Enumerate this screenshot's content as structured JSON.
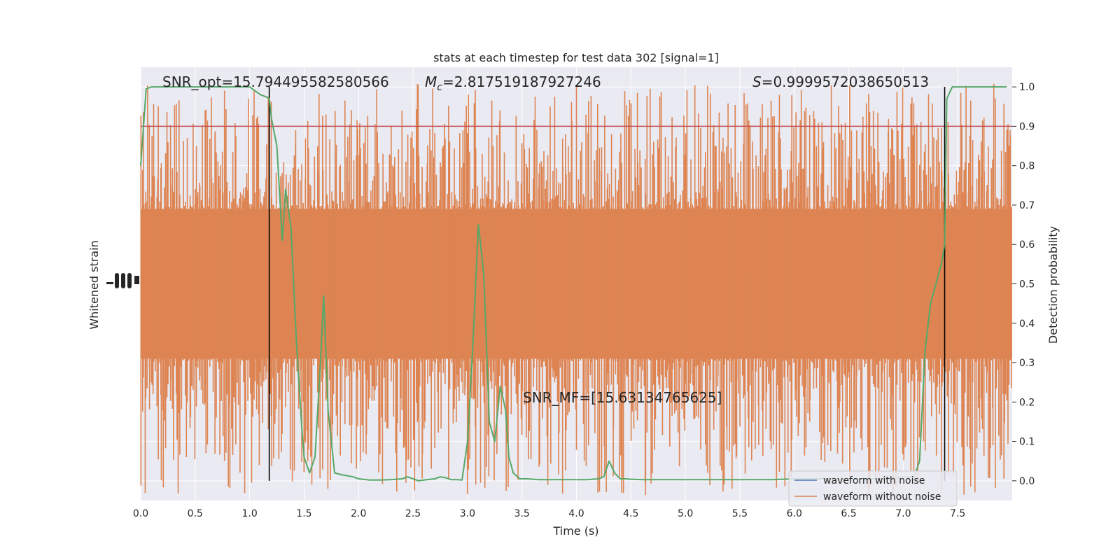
{
  "chart_data": {
    "type": "line",
    "title": "stats at each timestep for test data 302 [signal=1]",
    "xlabel": "Time (s)",
    "ylabel_left": "Whitened strain",
    "ylabel_right": "Detection probability",
    "xlim": [
      0,
      8
    ],
    "ylim_right": [
      -0.05,
      1.05
    ],
    "x_ticks": [
      "0.0",
      "0.5",
      "1.0",
      "1.5",
      "2.0",
      "2.5",
      "3.0",
      "3.5",
      "4.0",
      "4.5",
      "5.0",
      "5.5",
      "6.0",
      "6.5",
      "7.0",
      "7.5"
    ],
    "right_ticks": [
      "0.0",
      "0.1",
      "0.2",
      "0.3",
      "0.4",
      "0.5",
      "0.6",
      "0.7",
      "0.8",
      "0.9",
      "1.0"
    ],
    "grid": true,
    "legend_placement": "lower-right",
    "annotations": {
      "snr_opt": "SNR_opt=15.794495582580566",
      "mc_symbol": "M",
      "mc_sub": "c",
      "mc_value": "=2.817519187927246",
      "s_symbol": "S",
      "s_value": "=0.9999572038650513",
      "snr_mf": "SNR_MF=[15.63134765625]"
    },
    "threshold": 0.9,
    "vertical_markers": [
      1.18,
      7.38
    ],
    "series": [
      {
        "name": "waveform with noise",
        "color": "#4c72b0"
      },
      {
        "name": "waveform without noise",
        "color": "#dd8452"
      }
    ],
    "probability_color": "#55a868",
    "threshold_color": "#c44e52",
    "probability": {
      "x": [
        0.0,
        0.05,
        0.1,
        0.15,
        0.2,
        0.3,
        0.4,
        0.5,
        0.6,
        0.7,
        0.8,
        0.9,
        1.0,
        1.05,
        1.1,
        1.15,
        1.18,
        1.2,
        1.25,
        1.3,
        1.33,
        1.38,
        1.43,
        1.48,
        1.5,
        1.55,
        1.6,
        1.65,
        1.68,
        1.72,
        1.78,
        1.85,
        1.95,
        2.0,
        2.1,
        2.2,
        2.3,
        2.4,
        2.45,
        2.5,
        2.55,
        2.6,
        2.7,
        2.75,
        2.8,
        2.85,
        2.9,
        2.95,
        3.0,
        3.05,
        3.1,
        3.12,
        3.15,
        3.2,
        3.25,
        3.3,
        3.35,
        3.38,
        3.42,
        3.48,
        3.55,
        3.65,
        3.75,
        3.9,
        4.0,
        4.1,
        4.2,
        4.25,
        4.3,
        4.35,
        4.4,
        4.45,
        4.5,
        4.6,
        4.8,
        5.0,
        5.5,
        5.8,
        6.0,
        6.5,
        6.8,
        7.0,
        7.1,
        7.15,
        7.2,
        7.25,
        7.3,
        7.35,
        7.38,
        7.4,
        7.45,
        7.5,
        7.6,
        7.7,
        7.8,
        7.9,
        7.95
      ],
      "y": [
        0.8,
        0.995,
        1.0,
        1.0,
        1.0,
        1.0,
        1.0,
        1.0,
        1.0,
        1.0,
        1.0,
        1.0,
        1.0,
        0.99,
        0.98,
        0.975,
        0.97,
        0.92,
        0.85,
        0.61,
        0.74,
        0.64,
        0.35,
        0.13,
        0.06,
        0.02,
        0.06,
        0.3,
        0.47,
        0.18,
        0.02,
        0.015,
        0.01,
        0.005,
        0.002,
        0.002,
        0.003,
        0.005,
        0.01,
        0.005,
        0.0,
        0.002,
        0.005,
        0.01,
        0.008,
        0.003,
        0.003,
        0.002,
        0.1,
        0.35,
        0.65,
        0.6,
        0.52,
        0.15,
        0.1,
        0.24,
        0.18,
        0.06,
        0.02,
        0.005,
        0.005,
        0.003,
        0.003,
        0.003,
        0.003,
        0.003,
        0.005,
        0.01,
        0.05,
        0.02,
        0.005,
        0.005,
        0.004,
        0.003,
        0.003,
        0.003,
        0.003,
        0.003,
        0.005,
        0.005,
        0.005,
        0.01,
        0.01,
        0.05,
        0.33,
        0.45,
        0.5,
        0.55,
        0.6,
        0.97,
        1.0,
        1.0,
        1.0,
        1.0,
        1.0,
        1.0,
        1.0
      ]
    }
  }
}
